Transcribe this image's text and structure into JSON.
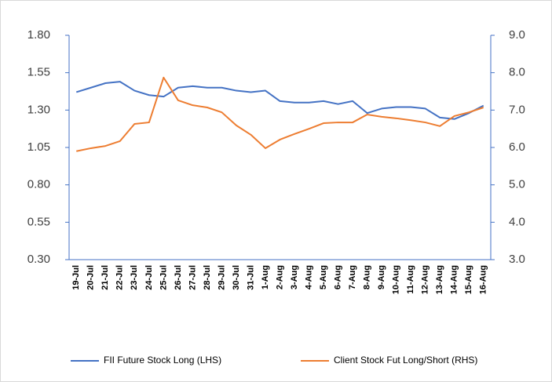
{
  "chart_data": {
    "type": "line",
    "categories": [
      "19-Jul",
      "20-Jul",
      "21-Jul",
      "22-Jul",
      "23-Jul",
      "24-Jul",
      "25-Jul",
      "26-Jul",
      "27-Jul",
      "28-Jul",
      "29-Jul",
      "30-Jul",
      "31-Jul",
      "1-Aug",
      "2-Aug",
      "3-Aug",
      "4-Aug",
      "5-Aug",
      "6-Aug",
      "7-Aug",
      "8-Aug",
      "9-Aug",
      "10-Aug",
      "11-Aug",
      "12-Aug",
      "13-Aug",
      "14-Aug",
      "15-Aug",
      "16-Aug"
    ],
    "series": [
      {
        "name": "FII Future Stock Long (LHS)",
        "color": "#4472c4",
        "values": [
          1.42,
          1.45,
          1.48,
          1.49,
          1.43,
          1.4,
          1.39,
          1.45,
          1.46,
          1.45,
          1.45,
          1.43,
          1.42,
          1.43,
          1.36,
          1.35,
          1.35,
          1.36,
          1.34,
          1.36,
          1.28,
          1.31,
          1.32,
          1.32,
          1.31,
          1.25,
          1.24,
          1.28,
          1.33
        ]
      },
      {
        "name": "Client Stock Fut Long/Short (RHS)",
        "color": "#ed7d31",
        "axis": "y2",
        "values": [
          5.9,
          5.98,
          6.04,
          6.17,
          6.63,
          6.67,
          7.87,
          7.26,
          7.13,
          7.07,
          6.94,
          6.59,
          6.34,
          5.98,
          6.21,
          6.36,
          6.5,
          6.65,
          6.67,
          6.67,
          6.88,
          6.82,
          6.78,
          6.73,
          6.67,
          6.57,
          6.84,
          6.94,
          7.07
        ]
      }
    ],
    "ylim": [
      0.3,
      1.8
    ],
    "yticks": [
      {
        "value": 0.3,
        "label": "0.30"
      },
      {
        "value": 0.55,
        "label": "0.55"
      },
      {
        "value": 0.8,
        "label": "0.80"
      },
      {
        "value": 1.05,
        "label": "1.05"
      },
      {
        "value": 1.3,
        "label": "1.30"
      },
      {
        "value": 1.55,
        "label": "1.55"
      },
      {
        "value": 1.8,
        "label": "1.80"
      }
    ],
    "y2lim": [
      3,
      9
    ],
    "y2ticks": [
      {
        "value": 3,
        "label": "3.0"
      },
      {
        "value": 4,
        "label": "4.0"
      },
      {
        "value": 5,
        "label": "5.0"
      },
      {
        "value": 6,
        "label": "6.0"
      },
      {
        "value": 7,
        "label": "7.0"
      },
      {
        "value": 8,
        "label": "8.0"
      },
      {
        "value": 9,
        "label": "9.0"
      }
    ],
    "legend": "bottom"
  }
}
